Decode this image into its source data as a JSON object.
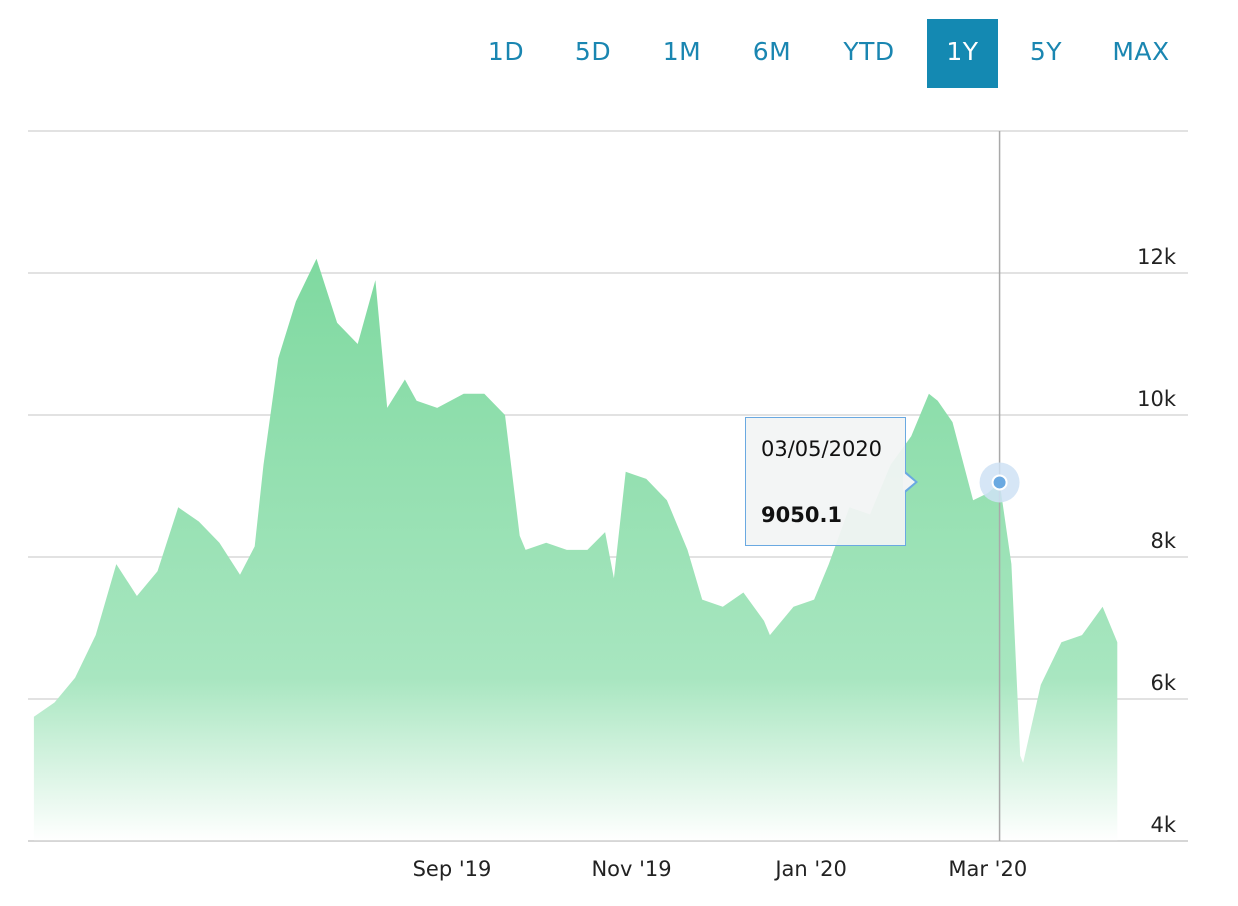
{
  "range_buttons": [
    {
      "label": "1D",
      "active": false
    },
    {
      "label": "5D",
      "active": false
    },
    {
      "label": "1M",
      "active": false
    },
    {
      "label": "6M",
      "active": false
    },
    {
      "label": "YTD",
      "active": false
    },
    {
      "label": "1Y",
      "active": true
    },
    {
      "label": "5Y",
      "active": false
    },
    {
      "label": "MAX",
      "active": false
    }
  ],
  "tooltip": {
    "date": "03/05/2020",
    "value": "9050.1"
  },
  "colors": {
    "accent": "#1489b2",
    "area_top": "#7fd9a0",
    "area_bottom": "#ffffff",
    "marker": "#6aa9e1"
  },
  "chart_data": {
    "type": "area",
    "title": "",
    "xlabel": "",
    "ylabel": "",
    "ylim": [
      4000,
      14000
    ],
    "y_ticks": [
      {
        "value": 4000,
        "label": "4k"
      },
      {
        "value": 6000,
        "label": "6k"
      },
      {
        "value": 8000,
        "label": "8k"
      },
      {
        "value": 10000,
        "label": "10k"
      },
      {
        "value": 12000,
        "label": "12k"
      }
    ],
    "x_ticks": [
      {
        "date": "2019-09-01",
        "label": "Sep '19"
      },
      {
        "date": "2019-11-01",
        "label": "Nov '19"
      },
      {
        "date": "2020-01-01",
        "label": "Jan '20"
      },
      {
        "date": "2020-03-01",
        "label": "Mar '20"
      }
    ],
    "grid": true,
    "highlight": {
      "date": "2020-03-05",
      "value": 9050.1
    },
    "series": [
      {
        "x": [
          "2019-04-12",
          "2019-04-19",
          "2019-04-26",
          "2019-05-03",
          "2019-05-10",
          "2019-05-17",
          "2019-05-24",
          "2019-05-31",
          "2019-06-07",
          "2019-06-14",
          "2019-06-21",
          "2019-06-26",
          "2019-06-29",
          "2019-07-04",
          "2019-07-10",
          "2019-07-17",
          "2019-07-24",
          "2019-07-31",
          "2019-08-06",
          "2019-08-10",
          "2019-08-16",
          "2019-08-20",
          "2019-08-27",
          "2019-09-05",
          "2019-09-12",
          "2019-09-19",
          "2019-09-24",
          "2019-09-26",
          "2019-10-03",
          "2019-10-10",
          "2019-10-17",
          "2019-10-23",
          "2019-10-26",
          "2019-10-30",
          "2019-11-06",
          "2019-11-13",
          "2019-11-20",
          "2019-11-25",
          "2019-12-02",
          "2019-12-09",
          "2019-12-16",
          "2019-12-18",
          "2019-12-26",
          "2020-01-02",
          "2020-01-07",
          "2020-01-14",
          "2020-01-21",
          "2020-01-28",
          "2020-02-04",
          "2020-02-10",
          "2020-02-13",
          "2020-02-18",
          "2020-02-25",
          "2020-03-01",
          "2020-03-05",
          "2020-03-09",
          "2020-03-12",
          "2020-03-13",
          "2020-03-19",
          "2020-03-26",
          "2020-04-02",
          "2020-04-09",
          "2020-04-14"
        ],
        "values": [
          5750,
          5950,
          6300,
          6900,
          7900,
          7450,
          7800,
          8700,
          8500,
          8200,
          7750,
          8150,
          9300,
          10800,
          11600,
          12200,
          11300,
          11000,
          11900,
          10100,
          10500,
          10200,
          10100,
          10300,
          10300,
          10000,
          8300,
          8100,
          8200,
          8100,
          8100,
          8350,
          7700,
          9200,
          9100,
          8800,
          8100,
          7400,
          7300,
          7500,
          7100,
          6900,
          7300,
          7400,
          7900,
          8700,
          8600,
          9300,
          9700,
          10300,
          10200,
          9900,
          8800,
          8900,
          9050.1,
          7900,
          5200,
          5100,
          6200,
          6800,
          6900,
          7300,
          6800
        ]
      }
    ]
  }
}
